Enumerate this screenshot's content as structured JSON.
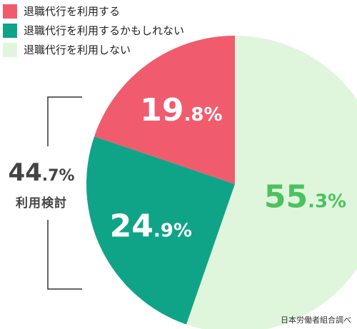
{
  "chart_data": {
    "type": "pie",
    "series": [
      {
        "name": "退職代行を利用する",
        "value": 19.8,
        "int": "19",
        "dec": ".8%",
        "color": "#f05c6e",
        "text_color": "#ffffff"
      },
      {
        "name": "退職代行を利用するかもしれない",
        "value": 24.9,
        "int": "24",
        "dec": ".9%",
        "color": "#0fa488",
        "text_color": "#ffffff"
      },
      {
        "name": "退職代行を利用しない",
        "value": 55.3,
        "int": "55",
        "dec": ".3%",
        "color": "#dff6dc",
        "text_color": "#4cc15f"
      }
    ],
    "bracket": {
      "int": "44",
      "dec": ".7%",
      "label": "利用検討"
    },
    "source": "日本労働者組合調べ"
  }
}
